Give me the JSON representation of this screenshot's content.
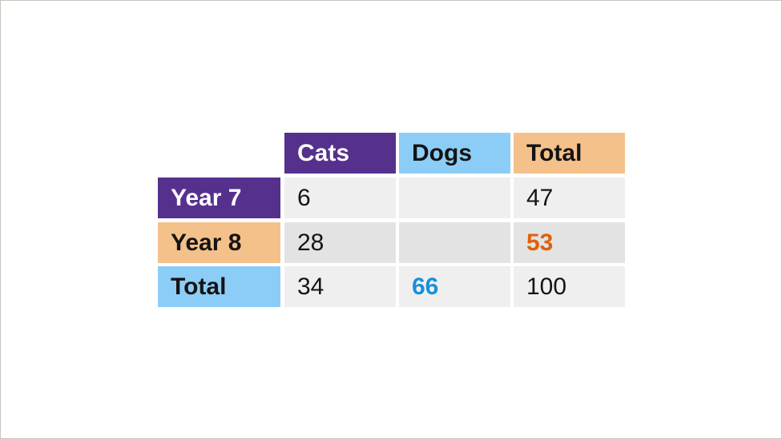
{
  "table": {
    "columns": [
      "Cats",
      "Dogs",
      "Total"
    ],
    "rows": [
      {
        "label": "Year 7",
        "cells": [
          "6",
          "",
          "47"
        ]
      },
      {
        "label": "Year 8",
        "cells": [
          "28",
          "",
          "53"
        ]
      },
      {
        "label": "Total",
        "cells": [
          "34",
          "66",
          "100"
        ]
      }
    ]
  },
  "colors": {
    "purple": "#55308d",
    "blue": "#8ccdf7",
    "orange": "#f5c18a",
    "highlight_orange": "#e0600a",
    "highlight_blue": "#1a8fd8"
  }
}
